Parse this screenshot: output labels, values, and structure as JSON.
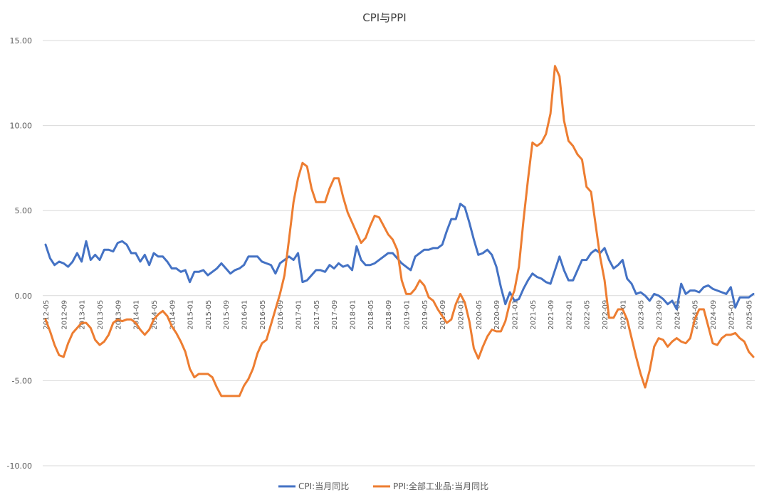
{
  "chart_data": {
    "type": "line",
    "title": "CPI与PPI",
    "xlabel": "",
    "ylabel": "",
    "ylim": [
      -10,
      15
    ],
    "yticks": [
      "15.00",
      "10.00",
      "5.00",
      "0.00",
      "-5.00",
      "-10.00"
    ],
    "grid": "horizontal",
    "legend_position": "bottom",
    "x_tick_labels": [
      "2012-05",
      "2012-09",
      "2013-01",
      "2013-05",
      "2013-09",
      "2014-01",
      "2014-05",
      "2014-09",
      "2015-01",
      "2015-05",
      "2015-09",
      "2016-01",
      "2016-05",
      "2016-09",
      "2017-01",
      "2017-05",
      "2017-09",
      "2018-01",
      "2018-05",
      "2018-09",
      "2019-01",
      "2019-05",
      "2019-09",
      "2020-01",
      "2020-05",
      "2020-09",
      "2021-01",
      "2021-05",
      "2021-09",
      "2022-01",
      "2022-05",
      "2022-09",
      "2023-01",
      "2023-05",
      "2023-09",
      "2024-01",
      "2024-05",
      "2024-09",
      "2025-01",
      "2025-05"
    ],
    "x_start": "2012-05",
    "x_end": "2025-06",
    "series": [
      {
        "name": "CPI:当月同比",
        "color": "#4472C4",
        "values": [
          3.0,
          2.2,
          1.8,
          2.0,
          1.9,
          1.7,
          2.0,
          2.5,
          2.0,
          3.2,
          2.1,
          2.4,
          2.1,
          2.7,
          2.7,
          2.6,
          3.1,
          3.2,
          3.0,
          2.5,
          2.5,
          2.0,
          2.4,
          1.8,
          2.5,
          2.3,
          2.3,
          2.0,
          1.6,
          1.6,
          1.4,
          1.5,
          0.8,
          1.4,
          1.4,
          1.5,
          1.2,
          1.4,
          1.6,
          1.9,
          1.6,
          1.3,
          1.5,
          1.6,
          1.8,
          2.3,
          2.3,
          2.3,
          2.0,
          1.9,
          1.8,
          1.3,
          1.9,
          2.1,
          2.3,
          2.1,
          2.5,
          0.8,
          0.9,
          1.2,
          1.5,
          1.5,
          1.4,
          1.8,
          1.6,
          1.9,
          1.7,
          1.8,
          1.5,
          2.9,
          2.1,
          1.8,
          1.8,
          1.9,
          2.1,
          2.3,
          2.5,
          2.5,
          2.2,
          1.9,
          1.7,
          1.5,
          2.3,
          2.5,
          2.7,
          2.7,
          2.8,
          2.8,
          3.0,
          3.8,
          4.5,
          4.5,
          5.4,
          5.2,
          4.3,
          3.3,
          2.4,
          2.5,
          2.7,
          2.4,
          1.7,
          0.5,
          -0.5,
          0.2,
          -0.3,
          -0.2,
          0.4,
          0.9,
          1.3,
          1.1,
          1.0,
          0.8,
          0.7,
          1.5,
          2.3,
          1.5,
          0.9,
          0.9,
          1.5,
          2.1,
          2.1,
          2.5,
          2.7,
          2.5,
          2.8,
          2.1,
          1.6,
          1.8,
          2.1,
          1.0,
          0.7,
          0.1,
          0.2,
          0.0,
          -0.3,
          0.1,
          0.0,
          -0.2,
          -0.5,
          -0.3,
          -0.8,
          0.7,
          0.1,
          0.3,
          0.3,
          0.2,
          0.5,
          0.6,
          0.4,
          0.3,
          0.2,
          0.1,
          0.5,
          -0.7,
          -0.1,
          -0.1,
          -0.1,
          0.1
        ]
      },
      {
        "name": "PPI:全部工业品:当月同比",
        "color": "#ED7D31",
        "values": [
          -1.4,
          -2.1,
          -2.9,
          -3.5,
          -3.6,
          -2.8,
          -2.2,
          -1.9,
          -1.6,
          -1.6,
          -1.9,
          -2.6,
          -2.9,
          -2.7,
          -2.3,
          -1.6,
          -1.4,
          -1.5,
          -1.4,
          -1.4,
          -1.6,
          -2.0,
          -2.3,
          -2.0,
          -1.4,
          -1.1,
          -0.9,
          -1.2,
          -1.8,
          -2.2,
          -2.7,
          -3.3,
          -4.3,
          -4.8,
          -4.6,
          -4.6,
          -4.6,
          -4.8,
          -5.4,
          -5.9,
          -5.9,
          -5.9,
          -5.9,
          -5.9,
          -5.3,
          -4.9,
          -4.3,
          -3.4,
          -2.8,
          -2.6,
          -1.7,
          -0.8,
          0.1,
          1.2,
          3.3,
          5.5,
          6.9,
          7.8,
          7.6,
          6.3,
          5.5,
          5.5,
          5.5,
          6.3,
          6.9,
          6.9,
          5.8,
          4.9,
          4.3,
          3.7,
          3.1,
          3.4,
          4.1,
          4.7,
          4.6,
          4.1,
          3.6,
          3.3,
          2.7,
          0.9,
          0.1,
          0.1,
          0.4,
          0.9,
          0.6,
          -0.1,
          -0.3,
          -0.8,
          -1.2,
          -1.6,
          -1.4,
          -0.5,
          0.1,
          -0.4,
          -1.5,
          -3.1,
          -3.7,
          -3.0,
          -2.4,
          -2.0,
          -2.1,
          -2.1,
          -1.5,
          -0.4,
          0.3,
          1.7,
          4.4,
          6.8,
          9.0,
          8.8,
          9.0,
          9.5,
          10.7,
          13.5,
          12.9,
          10.3,
          9.1,
          8.8,
          8.3,
          8.0,
          6.4,
          6.1,
          4.2,
          2.3,
          0.9,
          -1.3,
          -1.3,
          -0.8,
          -0.8,
          -1.4,
          -2.5,
          -3.6,
          -4.6,
          -5.4,
          -4.4,
          -3.0,
          -2.5,
          -2.6,
          -3.0,
          -2.7,
          -2.5,
          -2.7,
          -2.8,
          -2.5,
          -1.4,
          -0.8,
          -0.8,
          -1.8,
          -2.8,
          -2.9,
          -2.5,
          -2.3,
          -2.3,
          -2.2,
          -2.5,
          -2.7,
          -3.3,
          -3.6
        ]
      }
    ]
  }
}
